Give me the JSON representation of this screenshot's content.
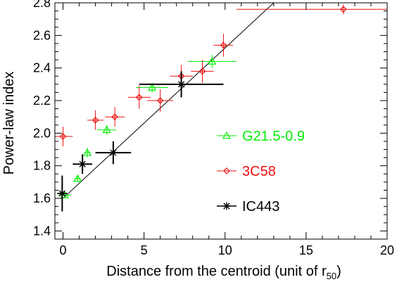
{
  "chart_data": {
    "type": "scatter",
    "xlabel": "Distance from the centroid (unit of r",
    "xlabel_sub": "50",
    "xlabel_close": ")",
    "ylabel": "Power-law index",
    "xlim": [
      -0.5,
      20
    ],
    "ylim": [
      1.35,
      2.8
    ],
    "xticks": [
      0,
      5,
      10,
      15,
      20
    ],
    "yticks": [
      1.4,
      1.6,
      1.8,
      2.0,
      2.2,
      2.4,
      2.6,
      2.8
    ],
    "xtick_labels": [
      "0",
      "5",
      "10",
      "15",
      "20"
    ],
    "ytick_labels": [
      "1.4",
      "1.6",
      "1.8",
      "2.0",
      "2.2",
      "2.4",
      "2.6",
      "2.8"
    ],
    "grid": false,
    "legend_position": "center-right",
    "fit_line": {
      "x": [
        0,
        13
      ],
      "y": [
        1.6,
        2.8
      ],
      "color": "#000000"
    },
    "series": [
      {
        "name": "G21.5-0.9",
        "marker": "triangle",
        "color": "#00ee00",
        "points": [
          {
            "x": 0.1,
            "y": 1.62,
            "xerr": 0.4,
            "yerr": 0.02
          },
          {
            "x": 0.9,
            "y": 1.72,
            "xerr": 0.2,
            "yerr": 0.02
          },
          {
            "x": 1.5,
            "y": 1.88,
            "xerr": 0.2,
            "yerr": 0.03
          },
          {
            "x": 2.7,
            "y": 2.02,
            "xerr": 0.6,
            "yerr": 0.03
          },
          {
            "x": 5.5,
            "y": 2.28,
            "xerr": 1.0,
            "yerr": 0.03
          },
          {
            "x": 9.2,
            "y": 2.44,
            "xerr": 1.5,
            "yerr": 0.04
          }
        ]
      },
      {
        "name": "3C58",
        "marker": "diamond",
        "color": "#ee1111",
        "points": [
          {
            "x": 0.0,
            "y": 1.98,
            "xerr": 0.6,
            "yerr": 0.06
          },
          {
            "x": 2.0,
            "y": 2.08,
            "xerr": 0.5,
            "yerr": 0.06
          },
          {
            "x": 3.2,
            "y": 2.1,
            "xerr": 0.6,
            "yerr": 0.06
          },
          {
            "x": 4.7,
            "y": 2.22,
            "xerr": 0.7,
            "yerr": 0.07
          },
          {
            "x": 6.0,
            "y": 2.2,
            "xerr": 0.8,
            "yerr": 0.07
          },
          {
            "x": 7.3,
            "y": 2.35,
            "xerr": 0.7,
            "yerr": 0.07
          },
          {
            "x": 8.6,
            "y": 2.38,
            "xerr": 0.7,
            "yerr": 0.07
          },
          {
            "x": 9.9,
            "y": 2.54,
            "xerr": 0.6,
            "yerr": 0.07
          },
          {
            "x": 17.3,
            "y": 2.76,
            "xerr": 6.6,
            "yerr": 0.03
          }
        ]
      },
      {
        "name": "IC443",
        "marker": "asterisk",
        "color": "#000000",
        "points": [
          {
            "x": -0.05,
            "y": 1.63,
            "xerr": 0.3,
            "yerr": 0.11
          },
          {
            "x": 1.2,
            "y": 1.81,
            "xerr": 0.6,
            "yerr": 0.06
          },
          {
            "x": 3.1,
            "y": 1.88,
            "xerr": 1.1,
            "yerr": 0.07
          },
          {
            "x": 7.3,
            "y": 2.3,
            "xerr": 2.6,
            "yerr": 0.08
          }
        ]
      }
    ]
  }
}
